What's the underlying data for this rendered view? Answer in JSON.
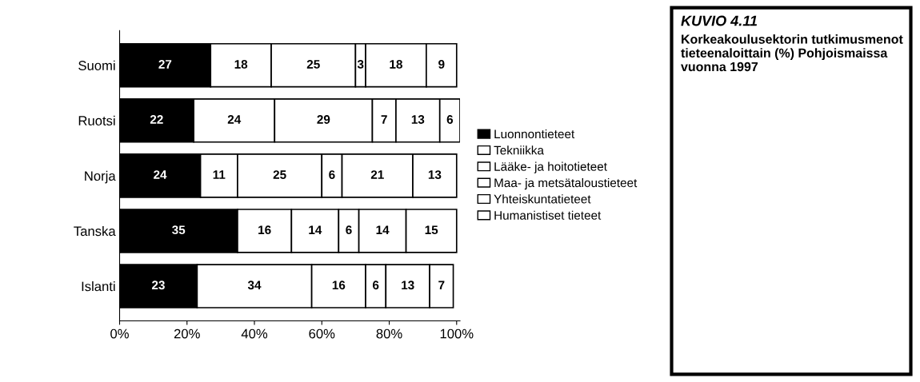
{
  "chart_data": {
    "type": "bar",
    "orientation": "horizontal",
    "stacked": true,
    "title": "KUVIO 4.11",
    "subtitle": "Korkeakoulusektorin tutkimusmenot tieteenaloittain (%) Pohjoismaissa vuonna 1997",
    "categories": [
      "Suomi",
      "Ruotsi",
      "Norja",
      "Tanska",
      "Islanti"
    ],
    "series": [
      {
        "name": "Luonnontieteet",
        "color": "#000000",
        "values": [
          27,
          22,
          24,
          35,
          23
        ]
      },
      {
        "name": "Tekniikka",
        "color": "#ffffff",
        "values": [
          18,
          24,
          11,
          16,
          34
        ]
      },
      {
        "name": "Lääke- ja hoitotieteet",
        "color": "#ffffff",
        "values": [
          25,
          29,
          25,
          14,
          16
        ]
      },
      {
        "name": "Maa- ja metsätaloustieteet",
        "color": "#ffffff",
        "values": [
          3,
          7,
          6,
          6,
          6
        ]
      },
      {
        "name": "Yhteiskuntatieteet",
        "color": "#ffffff",
        "values": [
          18,
          13,
          21,
          14,
          13
        ]
      },
      {
        "name": "Humanistiset tieteet",
        "color": "#ffffff",
        "values": [
          9,
          6,
          13,
          15,
          7
        ]
      }
    ],
    "xlim": [
      0,
      101
    ],
    "xticks": [
      {
        "value": 0,
        "label": "0%"
      },
      {
        "value": 20,
        "label": "20%"
      },
      {
        "value": 40,
        "label": "40%"
      },
      {
        "value": 60,
        "label": "60%"
      },
      {
        "value": 80,
        "label": "80%"
      },
      {
        "value": 100,
        "label": "100%"
      }
    ],
    "data_labels": true,
    "legend": "right",
    "grid": false
  }
}
